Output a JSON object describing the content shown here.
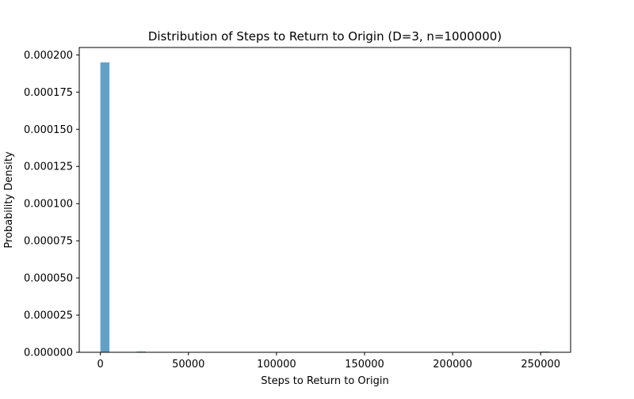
{
  "chart_data": {
    "type": "bar",
    "title": "Distribution of Steps to Return to Origin (D=3, n=1000000)",
    "xlabel": "Steps to Return to Origin",
    "ylabel": "Probability Density",
    "xlim": [
      -12000,
      267000
    ],
    "ylim": [
      0,
      0.000205
    ],
    "x_ticks": [
      0,
      50000,
      100000,
      150000,
      200000,
      250000
    ],
    "x_tick_labels": [
      "0",
      "50000",
      "100000",
      "150000",
      "200000",
      "250000"
    ],
    "y_ticks": [
      0,
      2.5e-05,
      5e-05,
      7.5e-05,
      0.0001,
      0.000125,
      0.00015,
      0.000175,
      0.0002
    ],
    "y_tick_labels": [
      "0.000000",
      "0.000025",
      "0.000050",
      "0.000075",
      "0.000100",
      "0.000125",
      "0.000150",
      "0.000175",
      "0.000200"
    ],
    "grid": false,
    "bar_color": "#1f77b4",
    "bar_opacity": 0.7,
    "bins": [
      {
        "x0": 0,
        "x1": 5150,
        "value": 0.000195
      },
      {
        "x0": 20600,
        "x1": 25750,
        "value": 3e-07
      },
      {
        "x0": 250000,
        "x1": 255150,
        "value": 3e-07
      }
    ]
  }
}
